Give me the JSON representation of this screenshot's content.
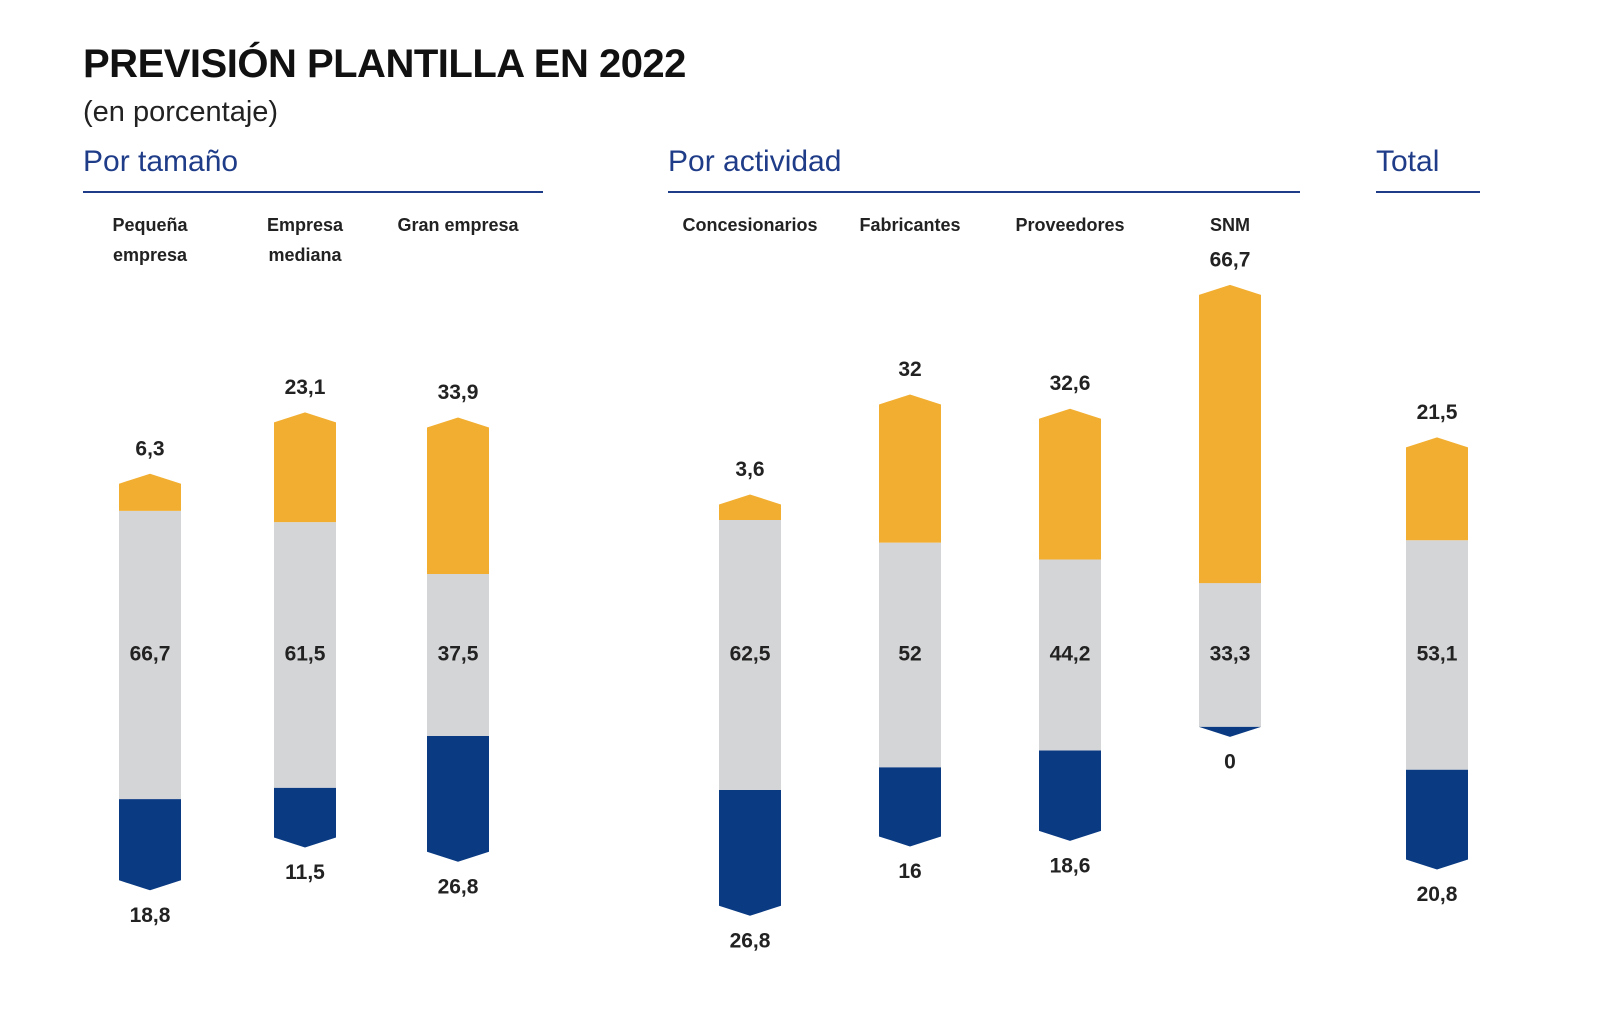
{
  "title": "PREVISIÓN PLANTILLA EN 2022",
  "subtitle": "(en porcentaje)",
  "chart_data": [
    {
      "type": "bar",
      "title": "Por tamaño",
      "categories": [
        "Pequeña empresa",
        "Empresa mediana",
        "Gran empresa"
      ],
      "series": [
        {
          "color": "#f2ae30",
          "values": [
            6.3,
            23.1,
            33.9
          ],
          "value_labels": [
            "6,3",
            "23,1",
            "33,9"
          ]
        },
        {
          "color": "#d4d5d7",
          "values": [
            66.7,
            61.5,
            37.5
          ],
          "value_labels": [
            "66,7",
            "61,5",
            "37,5"
          ]
        },
        {
          "color": "#0a3a82",
          "values": [
            18.8,
            11.5,
            26.8
          ],
          "value_labels": [
            "18,8",
            "11,5",
            "26,8"
          ]
        }
      ]
    },
    {
      "type": "bar",
      "title": "Por actividad",
      "categories": [
        "Concesionarios",
        "Fabricantes",
        "Proveedores",
        "SNM"
      ],
      "series": [
        {
          "color": "#f2ae30",
          "values": [
            3.6,
            32,
            32.6,
            66.7
          ],
          "value_labels": [
            "3,6",
            "32",
            "32,6",
            "66,7"
          ]
        },
        {
          "color": "#d4d5d7",
          "values": [
            62.5,
            52,
            44.2,
            33.3
          ],
          "value_labels": [
            "62,5",
            "52",
            "44,2",
            "33,3"
          ]
        },
        {
          "color": "#0a3a82",
          "values": [
            26.8,
            16,
            18.6,
            0
          ],
          "value_labels": [
            "26,8",
            "16",
            "18,6",
            "0"
          ]
        }
      ]
    },
    {
      "type": "bar",
      "title": "Total",
      "categories": [
        null
      ],
      "series": [
        {
          "color": "#f2ae30",
          "values": [
            21.5
          ],
          "value_labels": [
            "21,5"
          ]
        },
        {
          "color": "#d4d5d7",
          "values": [
            53.1
          ],
          "value_labels": [
            "53,1"
          ]
        },
        {
          "color": "#0a3a82",
          "values": [
            20.8
          ],
          "value_labels": [
            "20,8"
          ]
        }
      ]
    }
  ]
}
